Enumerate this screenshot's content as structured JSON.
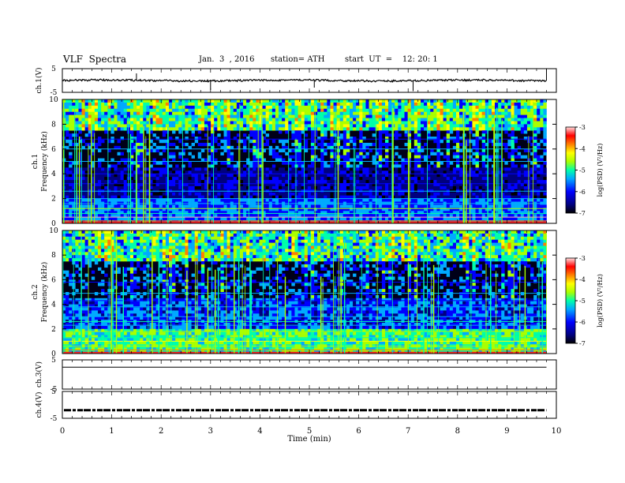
{
  "header": {
    "title": "VLF  Spectra",
    "date": "Jan.  3  , 2016",
    "station": "station= ATH",
    "start": "start  UT  =    12: 20: 1"
  },
  "chart_data": [
    {
      "type": "line",
      "name": "ch1-waveform",
      "ylabel": "ch.1(V)",
      "ylim": [
        -5,
        5
      ],
      "yticks": [
        "5",
        "-5"
      ],
      "baseline": 0
    },
    {
      "type": "heatmap",
      "name": "ch1-spectrogram",
      "ylabel": "ch.1\nFrequency  (kHz)",
      "ylim": [
        0,
        10
      ],
      "yticks": [
        "0",
        "2",
        "4",
        "6",
        "8",
        "10"
      ],
      "colorbar": {
        "label": "log(PSD) (V²/Hz)",
        "range": [
          -7,
          -3
        ],
        "ticks": [
          "-7",
          "-6",
          "-5",
          "-4",
          "-3"
        ]
      }
    },
    {
      "type": "heatmap",
      "name": "ch2-spectrogram",
      "ylabel": "ch.2\nFrequency  (kHz)",
      "ylim": [
        0,
        10
      ],
      "yticks": [
        "0",
        "2",
        "4",
        "6",
        "8",
        "10"
      ],
      "colorbar": {
        "label": "log(PSD) (V²/Hz)",
        "range": [
          -7,
          -3
        ],
        "ticks": [
          "-7",
          "-6",
          "-5",
          "-4",
          "-3"
        ]
      }
    },
    {
      "type": "line",
      "name": "ch3-waveform",
      "ylabel": "ch.3(V)",
      "ylim": [
        -5,
        5
      ],
      "yticks": [
        "5",
        "-5"
      ]
    },
    {
      "type": "line",
      "name": "ch4-waveform",
      "ylabel": "ch.4(V)",
      "ylim": [
        -5,
        5
      ],
      "yticks": [
        "5",
        "-5"
      ],
      "baseline": -2
    }
  ],
  "xaxis": {
    "label": "Time  (min)",
    "xlim": [
      0,
      10
    ],
    "ticks": [
      "0",
      "1",
      "2",
      "3",
      "4",
      "5",
      "6",
      "7",
      "8",
      "9",
      "10"
    ],
    "data_end": 9.8
  },
  "colors": {
    "colormap": [
      "#000000",
      "#00007f",
      "#0000ff",
      "#00aaff",
      "#00ffaa",
      "#aaff00",
      "#ffff00",
      "#ff7f00",
      "#ff0000",
      "#ffaaaa"
    ]
  }
}
